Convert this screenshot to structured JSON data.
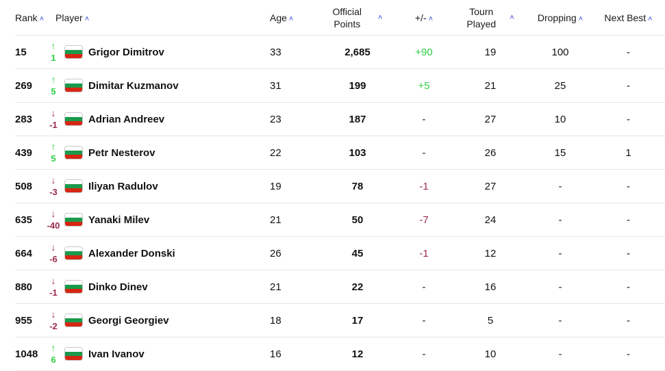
{
  "headers": {
    "rank": "Rank",
    "player": "Player",
    "age": "Age",
    "points_line1": "Official",
    "points_line2": "Points",
    "plusminus": "+/-",
    "tourn_line1": "Tourn",
    "tourn_line2": "Played",
    "dropping": "Dropping",
    "next_best": "Next Best",
    "sort_icon": "^"
  },
  "colors": {
    "up": "#2ed143",
    "down": "#9b2a4a",
    "sort_accent": "#2b3cd6"
  },
  "rows": [
    {
      "rank": "15",
      "move_dir": "up",
      "move": "1",
      "arrow": "↑",
      "player": "Grigor Dimitrov",
      "flag": "bulgaria-flag",
      "age": "33",
      "points": "2,685",
      "plusminus": "+90",
      "pm_type": "pos",
      "played": "19",
      "dropping": "100",
      "next_best": "-"
    },
    {
      "rank": "269",
      "move_dir": "up",
      "move": "5",
      "arrow": "↑",
      "player": "Dimitar Kuzmanov",
      "flag": "bulgaria-flag",
      "age": "31",
      "points": "199",
      "plusminus": "+5",
      "pm_type": "pos",
      "played": "21",
      "dropping": "25",
      "next_best": "-"
    },
    {
      "rank": "283",
      "move_dir": "down",
      "move": "-1",
      "arrow": "↓",
      "player": "Adrian Andreev",
      "flag": "bulgaria-flag",
      "age": "23",
      "points": "187",
      "plusminus": "-",
      "pm_type": "none",
      "played": "27",
      "dropping": "10",
      "next_best": "-"
    },
    {
      "rank": "439",
      "move_dir": "up",
      "move": "5",
      "arrow": "↑",
      "player": "Petr Nesterov",
      "flag": "bulgaria-flag",
      "age": "22",
      "points": "103",
      "plusminus": "-",
      "pm_type": "none",
      "played": "26",
      "dropping": "15",
      "next_best": "1"
    },
    {
      "rank": "508",
      "move_dir": "down",
      "move": "-3",
      "arrow": "↓",
      "player": "Iliyan Radulov",
      "flag": "bulgaria-flag",
      "age": "19",
      "points": "78",
      "plusminus": "-1",
      "pm_type": "neg",
      "played": "27",
      "dropping": "-",
      "next_best": "-"
    },
    {
      "rank": "635",
      "move_dir": "down",
      "move": "-40",
      "arrow": "↓",
      "player": "Yanaki Milev",
      "flag": "bulgaria-flag",
      "age": "21",
      "points": "50",
      "plusminus": "-7",
      "pm_type": "neg",
      "played": "24",
      "dropping": "-",
      "next_best": "-"
    },
    {
      "rank": "664",
      "move_dir": "down",
      "move": "-6",
      "arrow": "↓",
      "player": "Alexander Donski",
      "flag": "bulgaria-flag",
      "age": "26",
      "points": "45",
      "plusminus": "-1",
      "pm_type": "neg",
      "played": "12",
      "dropping": "-",
      "next_best": "-"
    },
    {
      "rank": "880",
      "move_dir": "down",
      "move": "-1",
      "arrow": "↓",
      "player": "Dinko Dinev",
      "flag": "bulgaria-flag",
      "age": "21",
      "points": "22",
      "plusminus": "-",
      "pm_type": "none",
      "played": "16",
      "dropping": "-",
      "next_best": "-"
    },
    {
      "rank": "955",
      "move_dir": "down",
      "move": "-2",
      "arrow": "↓",
      "player": "Georgi Georgiev",
      "flag": "bulgaria-flag",
      "age": "18",
      "points": "17",
      "plusminus": "-",
      "pm_type": "none",
      "played": "5",
      "dropping": "-",
      "next_best": "-"
    },
    {
      "rank": "1048",
      "move_dir": "up",
      "move": "6",
      "arrow": "↑",
      "player": "Ivan Ivanov",
      "flag": "bulgaria-flag",
      "age": "16",
      "points": "12",
      "plusminus": "-",
      "pm_type": "none",
      "played": "10",
      "dropping": "-",
      "next_best": "-"
    }
  ]
}
